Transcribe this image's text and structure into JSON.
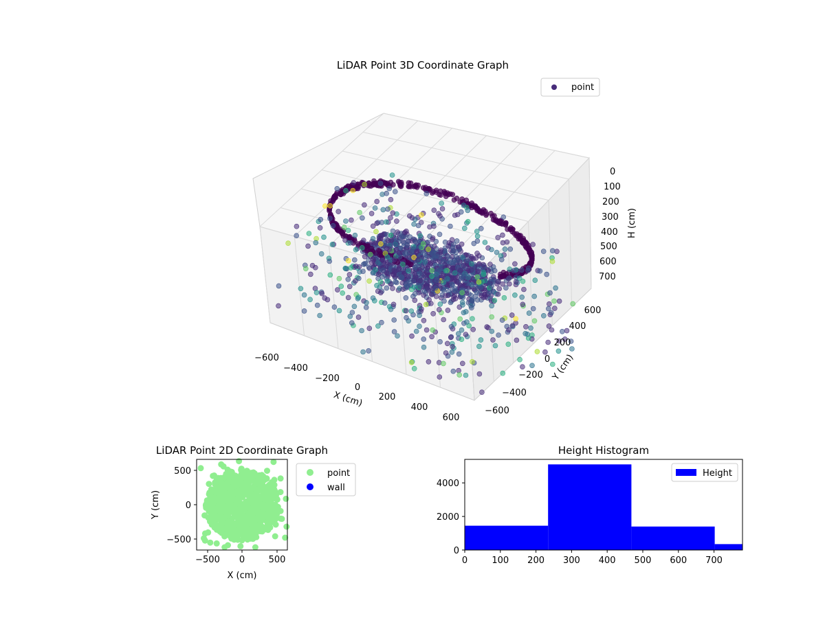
{
  "colors": {
    "point3d": "#472c7a",
    "point2d": "#90ee90",
    "wall": "#0000ff",
    "hist": "#0000ff",
    "pane": "#f2f2f2",
    "grid": "#d9d9d9"
  },
  "chart_data": [
    {
      "type": "scatter",
      "projection": "3d",
      "title": "LiDAR Point 3D Coordinate Graph",
      "xlabel": "X (cm)",
      "ylabel": "Y (cm)",
      "zlabel": "H (cm)",
      "x_ticks": [
        "−600",
        "−400",
        "−200",
        "0",
        "200",
        "400",
        "600"
      ],
      "y_ticks": [
        "−600",
        "−400",
        "−200",
        "0",
        "200",
        "400",
        "600"
      ],
      "z_ticks": [
        "0",
        "100",
        "200",
        "300",
        "400",
        "500",
        "600",
        "700"
      ],
      "z_inverted": true,
      "xlim": [
        -650,
        650
      ],
      "ylim": [
        -650,
        650
      ],
      "zlim": [
        0,
        780
      ],
      "colormap": "viridis",
      "legend": {
        "position": "top-right",
        "entries": [
          {
            "label": "point",
            "color": "#472c7a"
          }
        ]
      },
      "series": [
        {
          "name": "point"
        }
      ]
    },
    {
      "type": "scatter",
      "title": "LiDAR Point 2D Coordinate Graph",
      "xlabel": "X (cm)",
      "ylabel": "Y (cm)",
      "x_ticks": [
        "−500",
        "0",
        "500"
      ],
      "y_ticks": [
        "500",
        "0",
        "−500"
      ],
      "xlim": [
        -650,
        650
      ],
      "ylim": [
        -650,
        650
      ],
      "legend": {
        "position": "outside-right",
        "entries": [
          {
            "label": "point",
            "color": "#90ee90"
          },
          {
            "label": "wall",
            "color": "#0000ff"
          }
        ]
      },
      "series": [
        {
          "name": "point"
        },
        {
          "name": "wall"
        }
      ]
    },
    {
      "type": "bar",
      "title": "Height Histogram",
      "bins": [
        [
          0,
          234
        ],
        [
          234,
          468
        ],
        [
          468,
          702
        ],
        [
          702,
          780
        ]
      ],
      "values": [
        1450,
        5100,
        1400,
        350
      ],
      "x_ticks": [
        "0",
        "100",
        "200",
        "300",
        "400",
        "500",
        "600",
        "700"
      ],
      "y_ticks": [
        "0",
        "2000",
        "4000"
      ],
      "xlim": [
        0,
        780
      ],
      "ylim": [
        0,
        5400
      ],
      "legend": {
        "position": "top-right",
        "entries": [
          {
            "label": "Height",
            "color": "#0000ff"
          }
        ]
      },
      "series": [
        {
          "name": "Height"
        }
      ]
    }
  ]
}
